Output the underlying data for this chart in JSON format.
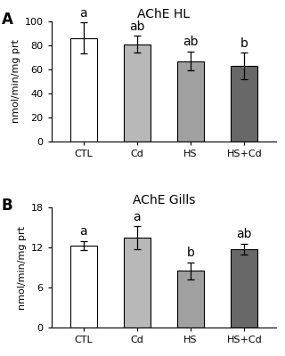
{
  "panel_A": {
    "title": "AChE HL",
    "categories": [
      "CTL",
      "Cd",
      "HS",
      "HS+Cd"
    ],
    "values": [
      86,
      81,
      67,
      63
    ],
    "errors": [
      13,
      7,
      8,
      11
    ],
    "letters": [
      "a",
      "ab",
      "ab",
      "b"
    ],
    "bar_colors": [
      "#ffffff",
      "#b8b8b8",
      "#a0a0a0",
      "#686868"
    ],
    "ylabel": "nmol/min/mg prt",
    "ylim": [
      0,
      100
    ],
    "yticks": [
      0,
      20,
      40,
      60,
      80,
      100
    ]
  },
  "panel_B": {
    "title": "AChE Gills",
    "categories": [
      "CTL",
      "Cd",
      "HS",
      "HS+Cd"
    ],
    "values": [
      12.3,
      13.5,
      8.5,
      11.8
    ],
    "errors": [
      0.7,
      1.7,
      1.3,
      0.8
    ],
    "letters": [
      "a",
      "a",
      "b",
      "ab"
    ],
    "bar_colors": [
      "#ffffff",
      "#b8b8b8",
      "#a0a0a0",
      "#686868"
    ],
    "ylabel": "nmol/min/mg prt",
    "ylim": [
      0,
      18
    ],
    "yticks": [
      0,
      6,
      12,
      18
    ]
  },
  "panel_labels": [
    "A",
    "B"
  ],
  "edge_color": "#000000",
  "background_color": "#ffffff",
  "bar_width": 0.5,
  "letter_fontsize": 10,
  "axis_fontsize": 8,
  "tick_fontsize": 8,
  "title_fontsize": 10
}
